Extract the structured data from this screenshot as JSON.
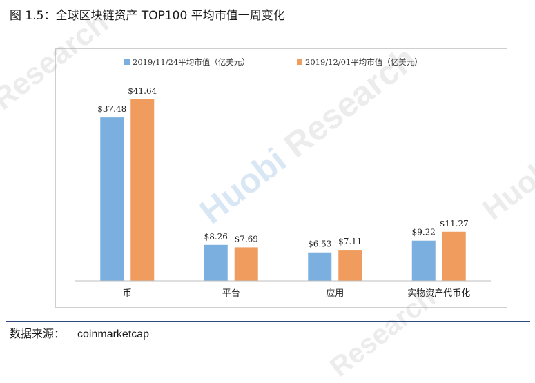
{
  "figure": {
    "title": "图 1.5：全球区块链资产 TOP100 平均市值一周变化",
    "source_label": "数据来源：",
    "source_value": "coinmarketcap"
  },
  "watermark": {
    "text": "Huobi Research",
    "brand": "Huobi",
    "suffix": "Research"
  },
  "colors": {
    "series1": "#7aafe0",
    "series2": "#ef9c5e",
    "rule": "#2d4a7a",
    "axis": "#bfbfbf"
  },
  "chart_data": {
    "type": "bar",
    "title": "",
    "xlabel": "",
    "ylabel": "",
    "categories": [
      "币",
      "平台",
      "应用",
      "实物资产代币化"
    ],
    "series": [
      {
        "name": "2019/11/24平均市值（亿美元）",
        "values": [
          37.48,
          8.26,
          6.53,
          9.22
        ],
        "labels": [
          "$37.48",
          "$8.26",
          "$6.53",
          "$9.22"
        ]
      },
      {
        "name": "2019/12/01平均市值（亿美元）",
        "values": [
          41.64,
          7.69,
          7.11,
          11.27
        ],
        "labels": [
          "$41.64",
          "$7.69",
          "$7.11",
          "$11.27"
        ]
      }
    ],
    "ylim": [
      0,
      50
    ],
    "grid": false,
    "legend_position": "top-center"
  }
}
